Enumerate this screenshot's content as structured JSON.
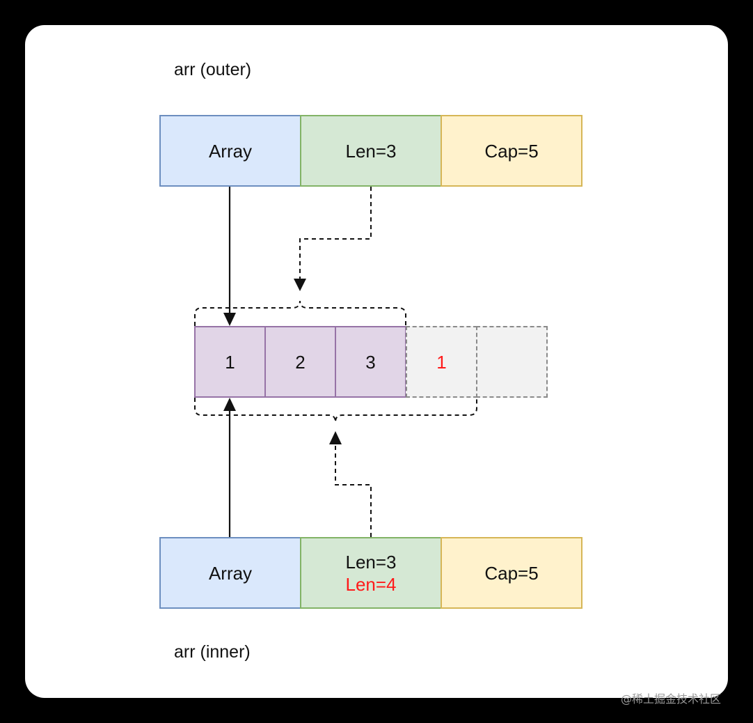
{
  "outer": {
    "label": "arr (outer)",
    "array": "Array",
    "len": "Len=3",
    "cap": "Cap=5"
  },
  "inner": {
    "label": "arr (inner)",
    "array": "Array",
    "len_old": "Len=3",
    "len_new": "Len=4",
    "cap": "Cap=5"
  },
  "elements": {
    "e1": "1",
    "e2": "2",
    "e3": "3",
    "e4": "1",
    "e5": ""
  },
  "watermark": "@稀土掘金技术社区",
  "colors": {
    "array_fill": "#dae8fc",
    "len_fill": "#d5e8d4",
    "cap_fill": "#fff2cc",
    "element_fill": "#e1d5e7",
    "extra_slot_fill": "#f2f2f2",
    "highlight": "#ff1a1a"
  }
}
